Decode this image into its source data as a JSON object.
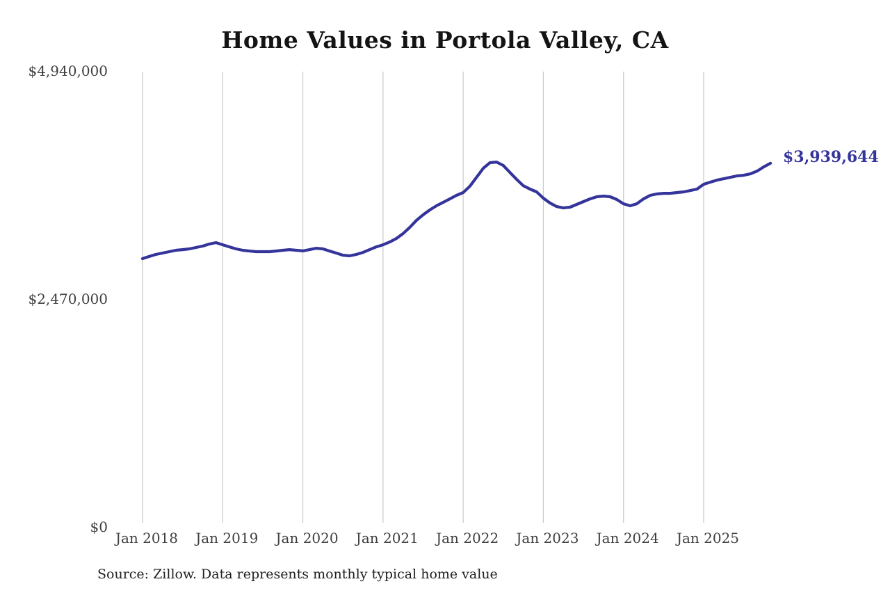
{
  "chart": {
    "title": "Home Values in Portola Valley, CA",
    "end_label": "$3,939,644",
    "source": "Source: Zillow. Data represents monthly typical home value",
    "colors": {
      "line": "#34349B",
      "grid": "#c9c9c9",
      "tick_text": "#3f3f3f",
      "title_text": "#141414",
      "end_label_text": "#34349B"
    }
  },
  "chart_data": {
    "type": "line",
    "title": "Home Values in Portola Valley, CA",
    "xlabel": "",
    "ylabel": "",
    "unit": "USD",
    "frequency": "monthly",
    "ylim": [
      0,
      4940000
    ],
    "y_tick_values": [
      0,
      2470000,
      4940000
    ],
    "y_tick_labels": [
      "$0",
      "$2,470,000",
      "$4,940,000"
    ],
    "x_tick_labels": [
      "Jan 2018",
      "Jan 2019",
      "Jan 2020",
      "Jan 2021",
      "Jan 2022",
      "Jan 2023",
      "Jan 2024",
      "Jan 2025"
    ],
    "grid": "vertical-yearly",
    "legend": "none",
    "series_name": "Typical home value",
    "last_value": 3939644,
    "last_value_label": "$3,939,644",
    "months": [
      "2018-01",
      "2018-02",
      "2018-03",
      "2018-04",
      "2018-05",
      "2018-06",
      "2018-07",
      "2018-08",
      "2018-09",
      "2018-10",
      "2018-11",
      "2018-12",
      "2019-01",
      "2019-02",
      "2019-03",
      "2019-04",
      "2019-05",
      "2019-06",
      "2019-07",
      "2019-08",
      "2019-09",
      "2019-10",
      "2019-11",
      "2019-12",
      "2020-01",
      "2020-02",
      "2020-03",
      "2020-04",
      "2020-05",
      "2020-06",
      "2020-07",
      "2020-08",
      "2020-09",
      "2020-10",
      "2020-11",
      "2020-12",
      "2021-01",
      "2021-02",
      "2021-03",
      "2021-04",
      "2021-05",
      "2021-06",
      "2021-07",
      "2021-08",
      "2021-09",
      "2021-10",
      "2021-11",
      "2021-12",
      "2022-01",
      "2022-02",
      "2022-03",
      "2022-04",
      "2022-05",
      "2022-06",
      "2022-07",
      "2022-08",
      "2022-09",
      "2022-10",
      "2022-11",
      "2022-12",
      "2023-01",
      "2023-02",
      "2023-03",
      "2023-04",
      "2023-05",
      "2023-06",
      "2023-07",
      "2023-08",
      "2023-09",
      "2023-10",
      "2023-11",
      "2023-12",
      "2024-01",
      "2024-02",
      "2024-03",
      "2024-04",
      "2024-05",
      "2024-06",
      "2024-07",
      "2024-08",
      "2024-09",
      "2024-10",
      "2024-11",
      "2024-12",
      "2025-01",
      "2025-02",
      "2025-03",
      "2025-04",
      "2025-05",
      "2025-06",
      "2025-07",
      "2025-08",
      "2025-09",
      "2025-10",
      "2025-11"
    ],
    "values": [
      2907000,
      2930000,
      2952000,
      2967000,
      2982000,
      2997000,
      3004000,
      3012000,
      3027000,
      3042000,
      3065000,
      3080000,
      3057000,
      3034000,
      3012000,
      2997000,
      2989000,
      2982000,
      2982000,
      2982000,
      2989000,
      2997000,
      3004000,
      2997000,
      2990000,
      3004000,
      3019000,
      3012000,
      2989000,
      2967000,
      2944000,
      2937000,
      2952000,
      2974000,
      3004000,
      3034000,
      3057000,
      3087000,
      3125000,
      3178000,
      3245000,
      3321000,
      3381000,
      3434000,
      3479000,
      3516000,
      3554000,
      3592000,
      3622000,
      3690000,
      3788000,
      3885000,
      3946000,
      3953000,
      3916000,
      3840000,
      3765000,
      3697000,
      3660000,
      3630000,
      3562000,
      3509000,
      3471000,
      3456000,
      3464000,
      3494000,
      3524000,
      3554000,
      3577000,
      3584000,
      3577000,
      3547000,
      3501000,
      3479000,
      3501000,
      3554000,
      3592000,
      3607000,
      3614000,
      3614000,
      3622000,
      3630000,
      3644000,
      3660000,
      3712000,
      3735000,
      3757000,
      3772000,
      3787000,
      3803000,
      3810000,
      3825000,
      3855000,
      3901000,
      3939644
    ]
  }
}
